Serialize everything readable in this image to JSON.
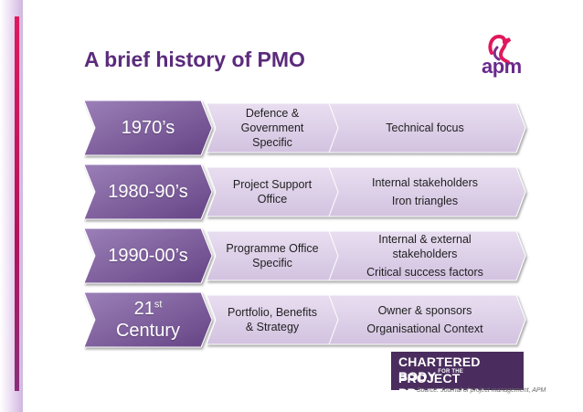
{
  "title": "A brief history of PMO",
  "logo": {
    "text": "apm",
    "icon": "heron-bird-icon",
    "color": "#6a2a8c",
    "accent": "#e0195d"
  },
  "rows": [
    {
      "era": "1970’s",
      "era_sup": "",
      "middle": [
        "Defence &",
        "Government",
        "Specific"
      ],
      "right": [
        "Technical focus"
      ]
    },
    {
      "era": "1980-90’s",
      "era_sup": "",
      "middle": [
        "Project Support",
        "Office"
      ],
      "right": [
        "Internal stakeholders",
        "Iron triangles"
      ]
    },
    {
      "era": "1990-00’s",
      "era_sup": "",
      "middle": [
        "Programme Office",
        "Specific"
      ],
      "right": [
        "Internal & external",
        "stakeholders",
        "Critical success factors"
      ]
    },
    {
      "era": "21",
      "era_sup": "st",
      "era_line2": "Century",
      "middle": [
        "Portfolio, Benefits",
        "& Strategy"
      ],
      "right": [
        "Owner & sponsors",
        "Organisational Context"
      ]
    }
  ],
  "badge": {
    "line1": "CHARTERED BODY",
    "line1_small": "FOR THE",
    "line2": "PROJECT PROFESSION"
  },
  "source": "Source: Journal of project management, APM",
  "colors": {
    "title": "#5b2b7c",
    "chevron_dark": "#7d5a9c",
    "chevron_light": "#d9cce6",
    "badge_bg": "#4a2d5e"
  }
}
